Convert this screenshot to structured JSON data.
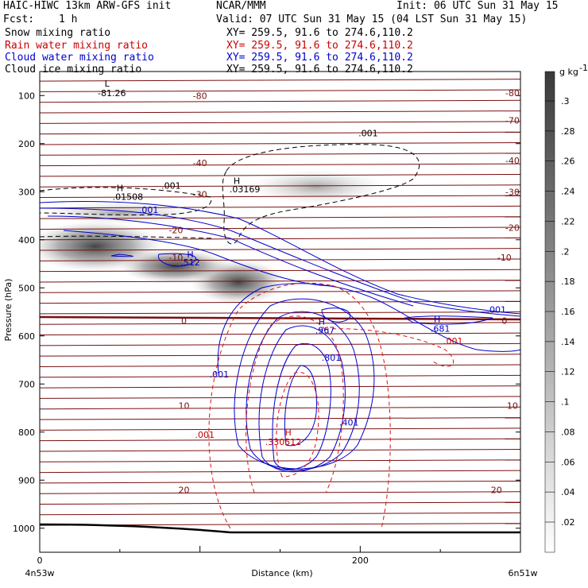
{
  "header": {
    "model": "HAIC-HIWC 13km ARW-GFS init",
    "org": "NCAR/MMM",
    "init": "Init: 06 UTC Sun 31 May 15",
    "fcst_label": "Fcst:",
    "fcst_value": "1 h",
    "valid": "Valid: 07 UTC Sun 31 May 15 (04 LST Sun 31 May 15)"
  },
  "legend": [
    {
      "name": "Snow mixing ratio",
      "xy": "XY= 259.5, 91.6 to 274.6,110.2",
      "color": "#000000"
    },
    {
      "name": "Rain water mixing ratio",
      "xy": "XY= 259.5, 91.6 to 274.6,110.2",
      "color": "#cc0000"
    },
    {
      "name": "Cloud water mixing ratio",
      "xy": "XY= 259.5, 91.6 to 274.6,110.2",
      "color": "#0000cc"
    },
    {
      "name": "Cloud ice mixing ratio",
      "xy": "XY= 259.5, 91.6 to 274.6,110.2",
      "color": "#000000"
    }
  ],
  "chart_data": {
    "type": "heatmap",
    "xlabel": "Distance (km)",
    "ylabel": "Pressure (hPa)",
    "xlim": [
      0,
      300
    ],
    "ylim": [
      1050,
      50
    ],
    "x_ticks": [
      0,
      200
    ],
    "y_ticks": [
      100,
      200,
      300,
      400,
      500,
      600,
      700,
      800,
      900,
      1000
    ],
    "x_endpoint_labels": [
      "4n53w",
      "6n51w"
    ],
    "colorbar": {
      "unit": "g kg",
      "unit_exp": "-1",
      "ticks": [
        ".3",
        ".28",
        ".26",
        ".24",
        ".22",
        ".2",
        ".18",
        ".16",
        ".14",
        ".12",
        ".1",
        ".08",
        ".06",
        ".04",
        ".02"
      ]
    },
    "isotherm_labels": [
      {
        "text": "-80",
        "x": 100,
        "p": 100
      },
      {
        "text": "-80",
        "x": 295,
        "p": 95
      },
      {
        "text": "-70",
        "x": 295,
        "p": 152
      },
      {
        "text": "-40",
        "x": 100,
        "p": 240
      },
      {
        "text": "-40",
        "x": 295,
        "p": 235
      },
      {
        "text": "-30",
        "x": 100,
        "p": 305
      },
      {
        "text": "-30",
        "x": 295,
        "p": 300
      },
      {
        "text": "-20",
        "x": 85,
        "p": 380
      },
      {
        "text": "-20",
        "x": 295,
        "p": 375
      },
      {
        "text": "-10",
        "x": 85,
        "p": 437
      },
      {
        "text": "-10",
        "x": 290,
        "p": 437
      },
      {
        "text": "0",
        "x": 90,
        "p": 568
      },
      {
        "text": "0",
        "x": 290,
        "p": 568
      },
      {
        "text": "10",
        "x": 90,
        "p": 745
      },
      {
        "text": "10",
        "x": 295,
        "p": 745
      },
      {
        "text": "20",
        "x": 90,
        "p": 920
      },
      {
        "text": "20",
        "x": 285,
        "p": 920
      }
    ],
    "field_labels": [
      {
        "text": "L",
        "x": 42,
        "p": 75,
        "color": "#000000"
      },
      {
        "text": "-81.26",
        "x": 45,
        "p": 95,
        "color": "#000000"
      },
      {
        "text": ".001",
        "x": 205,
        "p": 178,
        "color": "#000000"
      },
      {
        "text": ".001",
        "x": 82,
        "p": 287,
        "color": "#000000"
      },
      {
        "text": "H",
        "x": 50,
        "p": 292,
        "color": "#000000"
      },
      {
        "text": ".01508",
        "x": 55,
        "p": 310,
        "color": "#000000"
      },
      {
        "text": "H",
        "x": 123,
        "p": 277,
        "color": "#000000"
      },
      {
        "text": ".03169",
        "x": 128,
        "p": 295,
        "color": "#000000"
      },
      {
        "text": ".001",
        "x": 68,
        "p": 338,
        "color": "#0000cc"
      },
      {
        "text": "H",
        "x": 94,
        "p": 430,
        "color": "#0000cc"
      },
      {
        "text": ".512",
        "x": 94,
        "p": 447,
        "color": "#0000cc"
      },
      {
        "text": "H",
        "x": 176,
        "p": 570,
        "color": "#0000cc"
      },
      {
        "text": ".967",
        "x": 178,
        "p": 588,
        "color": "#0000cc"
      },
      {
        "text": ".801",
        "x": 182,
        "p": 645,
        "color": "#0000cc"
      },
      {
        "text": ".001",
        "x": 112,
        "p": 680,
        "color": "#0000cc"
      },
      {
        "text": ".401",
        "x": 193,
        "p": 780,
        "color": "#0000cc"
      },
      {
        "text": "H",
        "x": 248,
        "p": 565,
        "color": "#0000cc"
      },
      {
        "text": ".681",
        "x": 250,
        "p": 585,
        "color": "#0000cc"
      },
      {
        "text": ".001",
        "x": 285,
        "p": 545,
        "color": "#0000cc"
      },
      {
        "text": ".001",
        "x": 258,
        "p": 610,
        "color": "#cc0000"
      },
      {
        "text": ".001",
        "x": 103,
        "p": 805,
        "color": "#cc0000"
      },
      {
        "text": "H",
        "x": 155,
        "p": 800,
        "color": "#cc0000"
      },
      {
        "text": ".330512",
        "x": 152,
        "p": 820,
        "color": "#cc0000"
      }
    ]
  }
}
